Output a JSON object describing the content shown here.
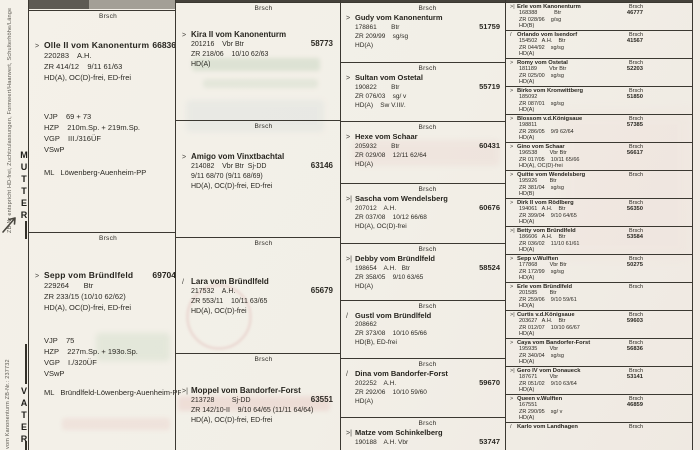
{
  "brsch_label": "Brsch",
  "margin": {
    "caption_top": "ZB-Nr entspricht HD-frei, Zuchtzulassungen, Formwert/Haarwert, Schulterhöhe/Länge",
    "mutter": "MUTTER",
    "vater": "VATER",
    "caption_bottom": "vom Kanonenturm  ZB-Nr.: 237732"
  },
  "gen1": [
    {
      "mark": ">",
      "name": "Olle II vom Kanonenturm",
      "number": "66836",
      "lines": [
        "220283    A.H.",
        "ZR 414/12    9/11 61/63",
        "HD(A), OC(D)-frei, ED-frei"
      ],
      "tests": [
        "VJP    69 + 73",
        "HZP    210m.Sp. + 219m.Sp.",
        "VGP    III./316ÜF",
        "VSwP"
      ],
      "ml": "ML   Löwenberg-Auenheim-PP"
    },
    {
      "mark": ">",
      "name": "Sepp vom Bründlfeld",
      "number": "69704",
      "lines": [
        "229264       Btr",
        "ZR 233/15 (10/10 62/62)",
        "HD(A), OC(D)-frei, ED-frei"
      ],
      "tests": [
        "VJP    75",
        "HZP    227m.Sp. + 193o.Sp.",
        "VGP    I./320ÜF",
        "VSwP"
      ],
      "ml": "ML   Bründlfeld-Löwenberg-Auenheim-PP"
    }
  ],
  "gen2": [
    {
      "mark": ">",
      "name": "Kira II vom Kanonenturm",
      "reg": "201216    Vbr Btr",
      "number": "58773",
      "line2": "ZR 218/06    10/10 62/63",
      "line3": "HD(A)"
    },
    {
      "mark": ">",
      "name": "Amigo vom Vinxtbachtal",
      "reg": "214082    Vbr Btr  Sj-DD",
      "number": "63146",
      "line2": "9/11 68/70 (9/11 68/69)",
      "line3": "HD(A), OC(D)-frei, ED-frei"
    },
    {
      "mark": "/",
      "name": "Lara vom Bründlfeld",
      "reg": "217532    A.H.",
      "number": "65679",
      "line2": "ZR 553/11    10/11 63/65",
      "line3": "HD(A), OC(D)-frei"
    },
    {
      "mark": ">|",
      "name": "Moppel vom Bandorfer-Forst",
      "reg": "213728         Sj-DD",
      "number": "63551",
      "line2": "ZR 142/10-II    9/10 64/65 (11/11 64/64)",
      "line3": "HD(A), OC(D)-frei, ED-frei"
    }
  ],
  "gen3": [
    {
      "mark": ">",
      "name": "Gudy vom Kanonenturm",
      "reg": "178861        Btr",
      "number": "51759",
      "line2": "ZR 209/99    sg/sg",
      "line3": "HD(A)"
    },
    {
      "mark": ">",
      "name": "Sultan vom Ostetal",
      "reg": "190822        Btr",
      "number": "55719",
      "line2": "ZR 076/03    sg/ v",
      "line3": "HD(A)    Sw V.III/."
    },
    {
      "mark": ">",
      "name": "Hexe vom Schaar",
      "reg": "205932        Btr",
      "number": "60431",
      "line2": "ZR 029/08    12/11 62/64",
      "line3": "HD(A)"
    },
    {
      "mark": ">|",
      "name": "Sascha vom Wendelsberg",
      "reg": "207012    A.H.",
      "number": "60676",
      "line2": "ZR 037/08    10/12 66/68",
      "line3": "HD(A), OC(D)-frei"
    },
    {
      "mark": ">|",
      "name": "Debby vom Bründlfeld",
      "reg": "198654    A.H.   Btr",
      "number": "58524",
      "line2": "ZR 358/05    9/10 63/65",
      "line3": "HD(A)"
    },
    {
      "mark": "/",
      "name": "Gustl vom Bründlfeld",
      "reg": "208662",
      "number": "",
      "line2": "ZR 373/08    10/10 65/66",
      "line3": "HD(B), ED-frei"
    },
    {
      "mark": "/",
      "name": "Dina vom Bandorfer-Forst",
      "reg": "202252    A.H.",
      "number": "59670",
      "line2": "ZR 292/06    10/10 59/60",
      "line3": "HD(A)"
    },
    {
      "mark": ">|",
      "name": "Matze vom Schinkelberg",
      "reg": "190188    A.H. Vbr",
      "number": "53747",
      "line2": "",
      "line3": ""
    }
  ],
  "gen4": [
    {
      "mark": ">|",
      "name": "Erle vom Kanonenturm",
      "reg": "168388           Btr",
      "number": "46777",
      "zr": "ZR 028/96    g/sg",
      "hd": "HD(B)"
    },
    {
      "mark": "/",
      "name": "Orlando vom Isendorf",
      "reg": "154502   A.H.    Btr",
      "number": "41567",
      "zr": "ZR 044/92    sg/sg",
      "hd": "HD(A)"
    },
    {
      "mark": ">",
      "name": "Romy vom Ostetal",
      "reg": "181189        Vbr Btr",
      "number": "52203",
      "zr": "ZR 025/00    sg/sg",
      "hd": "HD(A)"
    },
    {
      "mark": ">",
      "name": "Birko vom Kronwittberg",
      "reg": "185092",
      "number": "51850",
      "zr": "ZR 087/01    sg/sg",
      "hd": "HD(A)"
    },
    {
      "mark": ">",
      "name": "Blossom v.d.Königsaue",
      "reg": "198811",
      "number": "57385",
      "zr": "ZR 286/05    9/9 62/64",
      "hd": "HD(A)"
    },
    {
      "mark": ">",
      "name": "Gino vom Schaar",
      "reg": "196538        Vbr Btr",
      "number": "56617",
      "zr": "ZR 017/05    10/11 65/66",
      "hd": "HD(A), OC(D)-frei"
    },
    {
      "mark": ">",
      "name": "Quitte vom Wendelsberg",
      "reg": "195926        Btr",
      "number": "",
      "zr": "ZR 381/04    sg/sg",
      "hd": "HD(B)"
    },
    {
      "mark": ">",
      "name": "Dirk II vom Rödlberg",
      "reg": "194061   A.H.    Btr",
      "number": "56350",
      "zr": "ZR 399/04    9/10 64/65",
      "hd": "HD(A)"
    },
    {
      "mark": ">|",
      "name": "Betty vom Bründlfeld",
      "reg": "186606   A.H.    Btr",
      "number": "53584",
      "zr": "ZR 036/02    11/10 61/61",
      "hd": "HD(A)"
    },
    {
      "mark": ">",
      "name": "Sepp v.Wulften",
      "reg": "177868        Vbr Btr",
      "number": "50275",
      "zr": "ZR 172/99    sg/sg",
      "hd": "HD(A)"
    },
    {
      "mark": ">",
      "name": "Erle vom Bründlfeld",
      "reg": "201585        Btr",
      "number": "",
      "zr": "ZR 259/06    9/10 59/61",
      "hd": "HD(A)"
    },
    {
      "mark": ">|",
      "name": "Curtis v.d.Königsaue",
      "reg": "203627   A.H.    Btr",
      "number": "59603",
      "zr": "ZR 012/07    10/10 66/67",
      "hd": "HD(A)"
    },
    {
      "mark": ">",
      "name": "Caya vom Bandorfer-Forst",
      "reg": "195935        Vbr",
      "number": "56836",
      "zr": "ZR 340/04    sg/sg",
      "hd": "HD(A)"
    },
    {
      "mark": ">|",
      "name": "Gero IV vom Donaueck",
      "reg": "187671        Vbr",
      "number": "53141",
      "zr": "ZR 051/02    9/10 63/64",
      "hd": "HD(A)"
    },
    {
      "mark": ">",
      "name": "Queen v.Wulften",
      "reg": "167551",
      "number": "46859",
      "zr": "ZR 290/95    sg/ v",
      "hd": "HD(A)"
    },
    {
      "mark": "/",
      "name": "Karlo vom Landhagen",
      "reg": "",
      "number": "",
      "zr": "",
      "hd": ""
    }
  ]
}
